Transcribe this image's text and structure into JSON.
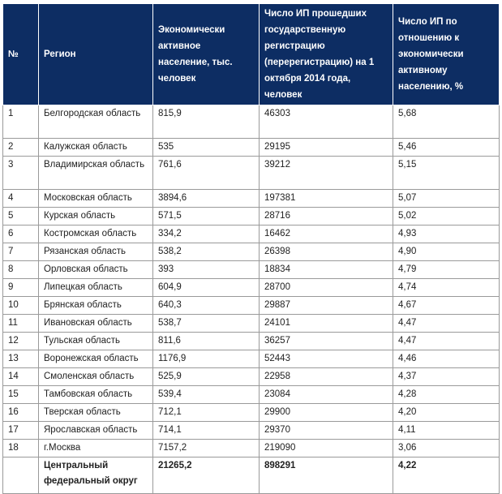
{
  "headers": {
    "num": "№",
    "region": "Регион",
    "population": "Экономически активное население, тыс. человек",
    "registered": "Число ИП прошедших государственную регистрацию (перерегистрацию) на 1 октября 2014 года, человек",
    "share": "Число ИП по отношению к экономически активному населению, %"
  },
  "rows": [
    {
      "num": "1",
      "region": "Белгородская область",
      "population": "815,9",
      "registered": "46303",
      "share": "5,68"
    },
    {
      "num": "2",
      "region": "Калужская область",
      "population": "535",
      "registered": "29195",
      "share": "5,46"
    },
    {
      "num": "3",
      "region": "Владимирская область",
      "population": "761,6",
      "registered": "39212",
      "share": "5,15"
    },
    {
      "num": "4",
      "region": "Московская область",
      "population": "3894,6",
      "registered": "197381",
      "share": "5,07"
    },
    {
      "num": "5",
      "region": "Курская область",
      "population": "571,5",
      "registered": "28716",
      "share": "5,02"
    },
    {
      "num": "6",
      "region": "Костромская область",
      "population": "334,2",
      "registered": "16462",
      "share": "4,93"
    },
    {
      "num": "7",
      "region": "Рязанская область",
      "population": "538,2",
      "registered": "26398",
      "share": "4,90"
    },
    {
      "num": "8",
      "region": "Орловская область",
      "population": "393",
      "registered": "18834",
      "share": "4,79"
    },
    {
      "num": "9",
      "region": "Липецкая область",
      "population": "604,9",
      "registered": "28700",
      "share": "4,74"
    },
    {
      "num": "10",
      "region": "Брянская область",
      "population": "640,3",
      "registered": "29887",
      "share": "4,67"
    },
    {
      "num": "11",
      "region": "Ивановская область",
      "population": "538,7",
      "registered": "24101",
      "share": "4,47"
    },
    {
      "num": "12",
      "region": "Тульская область",
      "population": "811,6",
      "registered": "36257",
      "share": "4,47"
    },
    {
      "num": "13",
      "region": "Воронежская область",
      "population": "1176,9",
      "registered": "52443",
      "share": "4,46"
    },
    {
      "num": "14",
      "region": "Смоленская область",
      "population": "525,9",
      "registered": "22958",
      "share": "4,37"
    },
    {
      "num": "15",
      "region": "Тамбовская область",
      "population": "539,4",
      "registered": "23084",
      "share": "4,28"
    },
    {
      "num": "16",
      "region": "Тверская область",
      "population": "712,1",
      "registered": "29900",
      "share": "4,20"
    },
    {
      "num": "17",
      "region": "Ярославская область",
      "population": "714,1",
      "registered": "29370",
      "share": "4,11"
    },
    {
      "num": "18",
      "region": "г.Москва",
      "population": "7157,2",
      "registered": "219090",
      "share": "3,06"
    }
  ],
  "total": {
    "region": "Центральный федеральный округ",
    "population": "21265,2",
    "registered": "898291",
    "share": "4,22"
  }
}
